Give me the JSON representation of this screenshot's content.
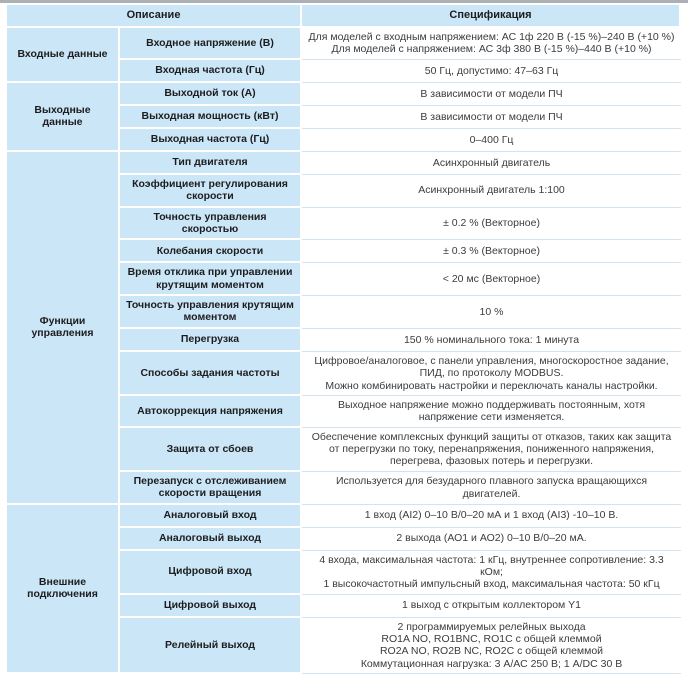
{
  "colors": {
    "cell_blue": "#cbe6f7",
    "header_text": "#1d1d1f",
    "value_text": "#3c3c3c",
    "row_separator": "#d4e3ef",
    "top_rule": "#abb0b4"
  },
  "table": {
    "headers": {
      "description": "Описание",
      "specification": "Спецификация"
    },
    "sections": [
      {
        "category": "Входные данные",
        "rows": [
          {
            "param": "Входное напряжение (В)",
            "value": "Для моделей с входным напряжением: АС 1ф 220 В (-15 %)–240 В (+10 %)\nДля моделей с напряжением: АС 3ф 380 В (-15 %)–440 В (+10 %)"
          },
          {
            "param": "Входная частота (Гц)",
            "value": "50 Гц, допустимо: 47–63 Гц"
          }
        ]
      },
      {
        "category": "Выходные данные",
        "rows": [
          {
            "param": "Выходной ток (А)",
            "value": "В зависимости от модели ПЧ"
          },
          {
            "param": "Выходная мощность (кВт)",
            "value": "В зависимости от модели ПЧ"
          },
          {
            "param": "Выходная частота (Гц)",
            "value": "0–400 Гц"
          }
        ]
      },
      {
        "category": "Функции управления",
        "rows": [
          {
            "param": "Тип двигателя",
            "value": "Асинхронный двигатель"
          },
          {
            "param": "Коэффициент регулирования скорости",
            "value": "Асинхронный двигатель 1:100"
          },
          {
            "param": "Точность управления скоростью",
            "value": "± 0.2 % (Векторное)"
          },
          {
            "param": "Колебания скорости",
            "value": "± 0.3 % (Векторное)"
          },
          {
            "param": "Время отклика при управлении крутящим моментом",
            "value": "< 20 мс (Векторное)"
          },
          {
            "param": "Точность управления крутящим моментом",
            "value": "10 %"
          },
          {
            "param": "Перегрузка",
            "value": "150 % номинального тока: 1 минута"
          },
          {
            "param": "Способы задания частоты",
            "value": "Цифровое/аналоговое, с панели управления, многоскоростное задание, ПИД, по протоколу MODBUS.\nМожно комбинировать настройки и переключать каналы настройки."
          },
          {
            "param": "Автокоррекция напряжения",
            "value": "Выходное напряжение можно поддерживать постоянным, хотя напряжение сети изменяется."
          },
          {
            "param": "Защита от сбоев",
            "value": "Обеспечение комплексных функций защиты от отказов, таких как защита от перегрузки по току, перенапряжения, пониженного напряжения, перегрева, фазовых потерь и перегрузки."
          },
          {
            "param": "Перезапуск с отслеживанием скорости вращения",
            "value": "Используется для безударного плавного запуска вращающихся двигателей."
          }
        ]
      },
      {
        "category": "Внешние подключения",
        "rows": [
          {
            "param": "Аналоговый вход",
            "value": "1 вход (AI2) 0–10 В/0–20 мА и 1 вход (AI3) -10–10 В."
          },
          {
            "param": "Аналоговый выход",
            "value": "2 выхода (АО1 и АО2) 0–10 В/0–20 мА."
          },
          {
            "param": "Цифровой вход",
            "value": "4 входа, максимальная частота: 1 кГц, внутреннее сопротивление: 3.3 кОм;\n1 высокочастотный импульсный вход, максимальная частота: 50 кГц"
          },
          {
            "param": "Цифровой выход",
            "value": "1 выход с открытым коллектором Y1"
          },
          {
            "param": "Релейный выход",
            "value": "2 программируемых релейных выхода\nRO1A NO, RO1BNC, RO1C с общей клеммой\nRO2A NO, RO2B NC, RO2C с общей клеммой\nКоммутационная нагрузка: 3 А/АС 250 В; 1 А/DC 30 В"
          }
        ]
      }
    ]
  }
}
